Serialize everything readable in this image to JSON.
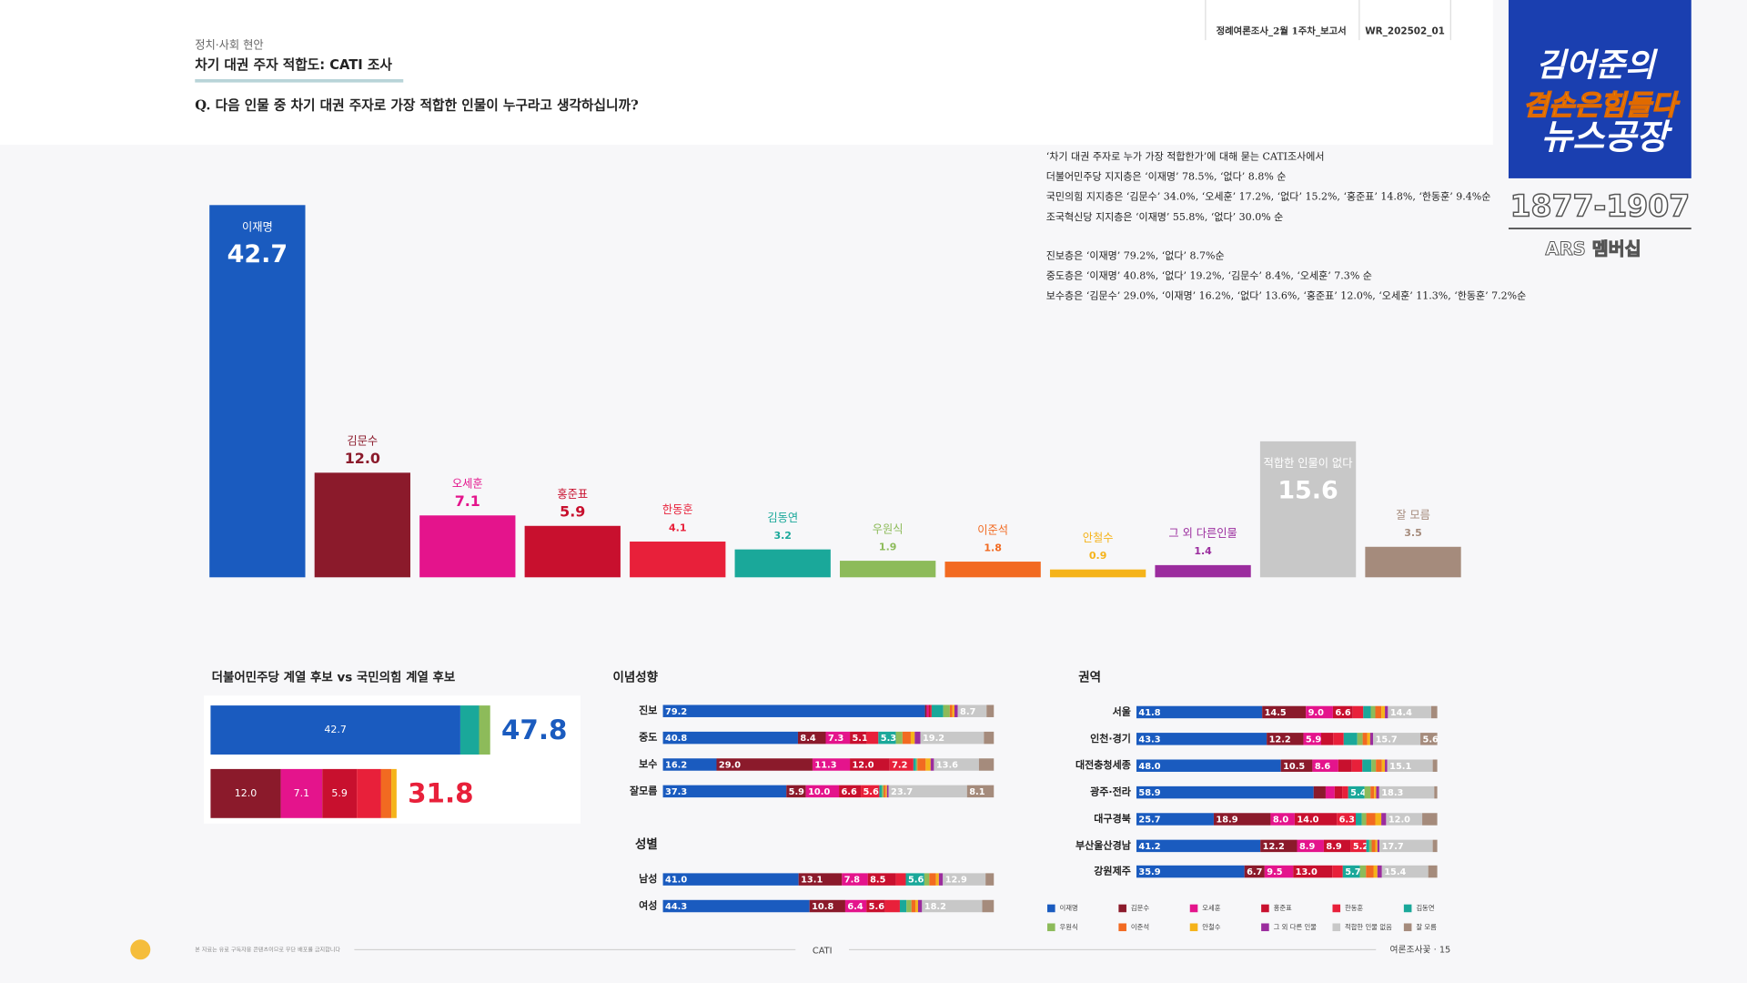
{
  "header": {
    "category": "정치·사회 현안",
    "title": "차기 대권 주자 적합도: CATI 조사",
    "question": "Q. 다음 인물 중 차기 대권 주자로 가장 적합한 인물이 누구라고 생각하십니까?",
    "report": "정례여론조사_2월 1주차_보고서",
    "code": "WR_202502_01"
  },
  "summary": [
    "‘차기 대권 주자로 누가 가장 적합한가’에 대해 묻는 CATI조사에서",
    "더불어민주당 지지층은 ‘이재명’ 78.5%, ‘없다’ 8.8% 순",
    "국민의힘 지지층은 ‘김문수’ 34.0%, ‘오세훈’ 17.2%, ‘없다’ 15.2%, ‘홍준표’ 14.8%, ‘한동훈’ 9.4%순",
    "조국혁신당 지지층은 ‘이재명’ 55.8%, ‘없다’ 30.0% 순",
    "진보층은 ‘이재명’ 79.2%, ‘없다’ 8.7%순",
    "중도층은 ‘이재명’ 40.8%, ‘없다’ 19.2%, ‘김문수’ 8.4%, ‘오세훈’ 7.3% 순",
    "보수층은 ‘김문수’ 29.0%, ‘이재명’ 16.2%, ‘없다’ 13.6%, ‘홍준표’ 12.0%, ‘오세훈’ 11.3%, ‘한동훈’ 7.2%순"
  ],
  "logo": {
    "line1": "김어준의",
    "line2": "겸손은힘들다",
    "line3": "뉴스공장",
    "phone": "1877-1907",
    "membership": "ARS 멤버십"
  },
  "footer": {
    "note": "본 자료는 유료 구독자용 콘텐츠이므로 무단 배포를 금지합니다",
    "center": "CATI",
    "page": "여론조사꽃 · 15"
  },
  "chart_data": [
    {
      "type": "bar",
      "categories": [
        "이재명",
        "김문수",
        "오세훈",
        "홍준표",
        "한동훈",
        "김동연",
        "우원식",
        "이준석",
        "안철수",
        "그 외 다른인물",
        "적합한 인물이 없다",
        "잘 모름"
      ],
      "values": [
        42.7,
        12.0,
        7.1,
        5.9,
        4.1,
        3.2,
        1.9,
        1.8,
        0.9,
        1.4,
        15.6,
        3.5
      ],
      "value_labels": [
        "42.7",
        "12.0",
        "7.1",
        "5.9",
        "4.1",
        "3.2",
        "1.9",
        "1.8",
        "0.9",
        "1.4",
        "15.6",
        "3.5"
      ],
      "colors": [
        "#1a5bbf",
        "#8b1a2b",
        "#e4148c",
        "#c8102e",
        "#e8203a",
        "#1aa89a",
        "#8dbb5a",
        "#f26a21",
        "#f5b31a",
        "#9b2c9e",
        "#c8c8c8",
        "#a58b7c"
      ]
    },
    {
      "type": "stacked_bar",
      "title": "더불어민주당 계열 후보 vs 국민의힘 계열 후보",
      "rows": [
        {
          "values": [
            42.7,
            3.2,
            1.9
          ],
          "value_labels": [
            "42.7",
            null,
            null
          ],
          "colors": [
            "#1a5bbf",
            "#1aa89a",
            "#8dbb5a"
          ],
          "total": 47.8,
          "total_color": "#1a5bbf"
        },
        {
          "values": [
            12.0,
            7.1,
            5.9,
            4.1,
            1.8,
            0.9
          ],
          "value_labels": [
            "12.0",
            "7.1",
            "5.9",
            null,
            null,
            null
          ],
          "colors": [
            "#8b1a2b",
            "#e4148c",
            "#c8102e",
            "#e8203a",
            "#f26a21",
            "#f5b31a"
          ],
          "total": 31.8,
          "total_color": "#e8203a"
        }
      ]
    },
    {
      "type": "stacked_bar_100",
      "legend": true,
      "series": [
        {
          "name": "이재명",
          "color": "#1a5bbf"
        },
        {
          "name": "김문수",
          "color": "#8b1a2b"
        },
        {
          "name": "오세훈",
          "color": "#e4148c"
        },
        {
          "name": "홍준표",
          "color": "#c8102e"
        },
        {
          "name": "한동훈",
          "color": "#e8203a"
        },
        {
          "name": "김동연",
          "color": "#1aa89a"
        },
        {
          "name": "우원식",
          "color": "#8dbb5a"
        },
        {
          "name": "이준석",
          "color": "#f26a21"
        },
        {
          "name": "안철수",
          "color": "#f5b31a"
        },
        {
          "name": "그 외 다른 인물",
          "color": "#9b2c9e"
        },
        {
          "name": "적합한 인물 없음",
          "color": "#c8c8c8"
        },
        {
          "name": "잘 모름",
          "color": "#a58b7c"
        }
      ],
      "panels": [
        {
          "title": "이념성향",
          "categories": [
            "진보",
            "중도",
            "보수",
            "잘모름"
          ],
          "values": [
            [
              79.2,
              0.5,
              0.6,
              0.5,
              0.4,
              3.5,
              2.0,
              0.8,
              0.6,
              1.0,
              8.7,
              2.2
            ],
            [
              40.8,
              8.4,
              7.3,
              5.1,
              3.5,
              5.3,
              2.0,
              2.5,
              1.2,
              1.7,
              19.2,
              3.0
            ],
            [
              16.2,
              29.0,
              11.3,
              12.0,
              7.2,
              0.8,
              0.4,
              2.5,
              1.5,
              1.0,
              13.6,
              4.5
            ],
            [
              37.3,
              5.9,
              10.0,
              6.6,
              5.6,
              0.8,
              0.5,
              0.6,
              0.4,
              0.5,
              23.7,
              8.1
            ]
          ],
          "value_labels": [
            [
              "79.2",
              null,
              null,
              null,
              null,
              null,
              null,
              null,
              null,
              null,
              "8.7",
              null
            ],
            [
              "40.8",
              "8.4",
              "7.3",
              "5.1",
              null,
              "5.3",
              null,
              null,
              null,
              null,
              "19.2",
              null
            ],
            [
              "16.2",
              "29.0",
              "11.3",
              "12.0",
              "7.2",
              null,
              null,
              null,
              null,
              null,
              "13.6",
              null
            ],
            [
              "37.3",
              "5.9",
              "10.0",
              "6.6",
              "5.6",
              null,
              null,
              null,
              null,
              null,
              "23.7",
              "8.1"
            ]
          ]
        },
        {
          "title": "성별",
          "categories": [
            "남성",
            "여성"
          ],
          "values": [
            [
              41.0,
              13.1,
              7.8,
              8.5,
              3.0,
              5.6,
              1.5,
              2.0,
              0.9,
              1.2,
              12.9,
              2.5
            ],
            [
              44.3,
              10.8,
              6.4,
              5.6,
              4.5,
              2.0,
              1.5,
              1.2,
              0.8,
              1.2,
              18.2,
              3.5
            ]
          ],
          "value_labels": [
            [
              "41.0",
              "13.1",
              "7.8",
              "8.5",
              null,
              "5.6",
              null,
              null,
              null,
              null,
              "12.9",
              null
            ],
            [
              "44.3",
              "10.8",
              "6.4",
              "5.6",
              null,
              null,
              null,
              null,
              null,
              null,
              "18.2",
              null
            ]
          ]
        },
        {
          "title": "권역",
          "categories": [
            "서울",
            "인천·경기",
            "대전충청세종",
            "광주·전라",
            "대구경북",
            "부산울산경남",
            "강원제주"
          ],
          "values": [
            [
              41.8,
              14.5,
              9.0,
              6.6,
              3.5,
              2.5,
              1.5,
              2.0,
              1.2,
              1.0,
              14.4,
              2.0
            ],
            [
              43.3,
              12.2,
              5.9,
              4.0,
              3.5,
              4.5,
              1.8,
              1.5,
              1.0,
              1.0,
              15.7,
              5.6
            ],
            [
              48.0,
              10.5,
              8.6,
              4.5,
              3.5,
              3.0,
              1.5,
              2.0,
              1.0,
              0.8,
              15.1,
              1.5
            ],
            [
              58.9,
              4.0,
              3.0,
              2.5,
              2.0,
              5.4,
              2.0,
              1.2,
              0.7,
              1.0,
              18.3,
              1.0
            ],
            [
              25.7,
              18.9,
              8.0,
              14.0,
              6.3,
              2.0,
              1.5,
              3.0,
              2.0,
              1.6,
              12.0,
              5.0
            ],
            [
              41.2,
              12.2,
              8.9,
              8.9,
              5.2,
              1.0,
              0.8,
              1.2,
              0.7,
              0.7,
              17.7,
              1.5
            ],
            [
              35.9,
              6.7,
              9.5,
              13.0,
              3.5,
              5.7,
              2.0,
              2.5,
              1.3,
              1.5,
              15.4,
              3.0
            ]
          ],
          "value_labels": [
            [
              "41.8",
              "14.5",
              "9.0",
              "6.6",
              null,
              null,
              null,
              null,
              null,
              null,
              "14.4",
              null
            ],
            [
              "43.3",
              "12.2",
              "5.9",
              null,
              null,
              null,
              null,
              null,
              null,
              null,
              "15.7",
              "5.6"
            ],
            [
              "48.0",
              "10.5",
              "8.6",
              null,
              null,
              null,
              null,
              null,
              null,
              null,
              "15.1",
              null
            ],
            [
              "58.9",
              null,
              null,
              null,
              null,
              "5.4",
              null,
              null,
              null,
              null,
              "18.3",
              null
            ],
            [
              "25.7",
              "18.9",
              "8.0",
              "14.0",
              "6.3",
              null,
              null,
              null,
              null,
              null,
              "12.0",
              null
            ],
            [
              "41.2",
              "12.2",
              "8.9",
              "8.9",
              "5.2",
              null,
              null,
              null,
              null,
              null,
              "17.7",
              null
            ],
            [
              "35.9",
              "6.7",
              "9.5",
              "13.0",
              null,
              "5.7",
              null,
              null,
              null,
              null,
              "15.4",
              null
            ]
          ]
        }
      ]
    }
  ]
}
